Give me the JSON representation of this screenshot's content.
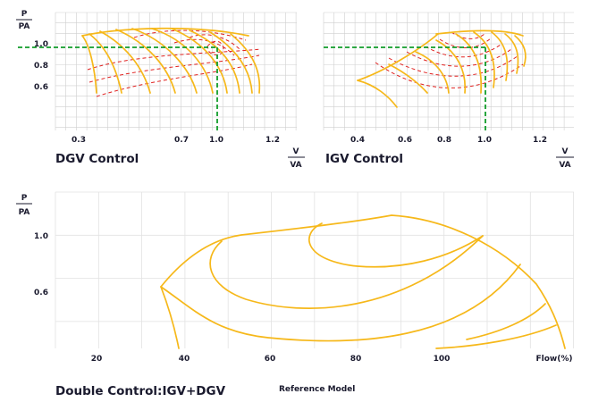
{
  "dgv": {
    "title": "DGV Control",
    "y_num": "P",
    "y_den": "PA",
    "y_ticks": [
      "1.0",
      "0.8",
      "0.6"
    ],
    "x_ticks": [
      "0.3",
      "0.7",
      "1.0",
      "1.2"
    ],
    "x_num": "V",
    "x_den": "VA"
  },
  "igv": {
    "title": "IGV Control",
    "x_ticks": [
      "0.4",
      "0.6",
      "0.8",
      "1.0",
      "1.2"
    ],
    "x_num": "V",
    "x_den": "VA"
  },
  "double": {
    "title": "Double Control:IGV+DGV",
    "subtitle": "Reference Model",
    "y_num": "P",
    "y_den": "PA",
    "y_ticks": [
      "1.0",
      "0.6"
    ],
    "x_ticks": [
      "20",
      "40",
      "60",
      "80",
      "100",
      "Flow(%)"
    ]
  },
  "colors": {
    "curve": "#f6b81a",
    "efficiency": "#e0211f",
    "operating_point": "#119c2a"
  }
}
